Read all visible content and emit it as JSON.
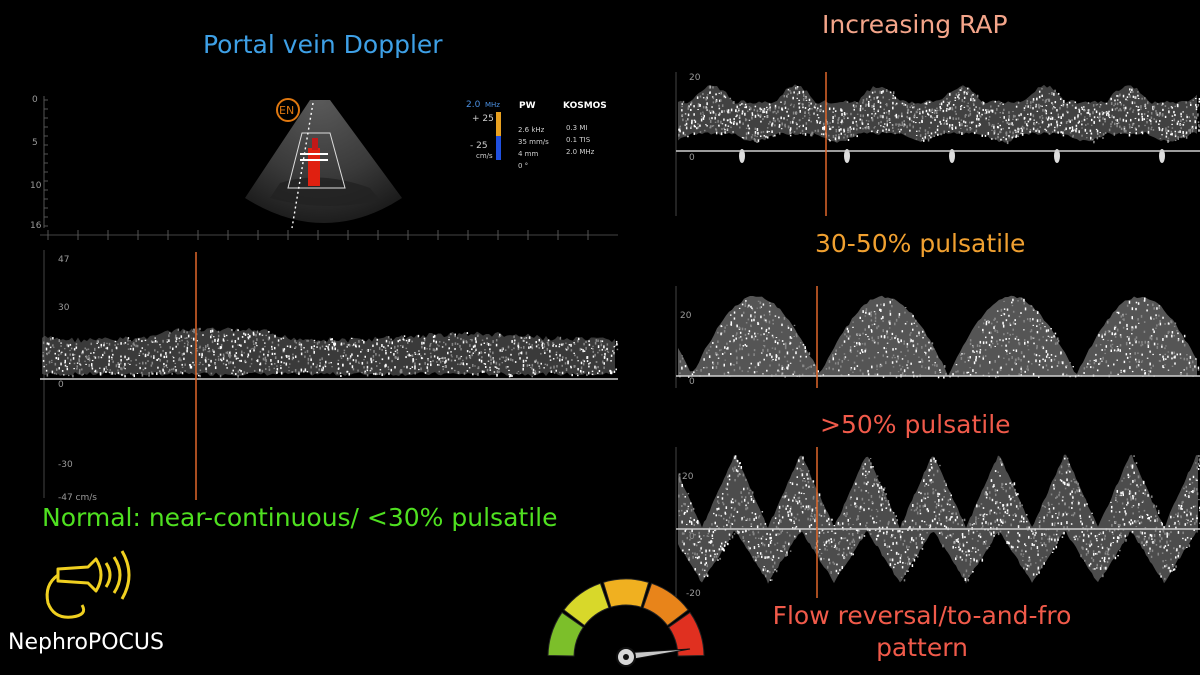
{
  "titles": {
    "portal": "Portal vein Doppler",
    "rap": "Increasing RAP",
    "mild": "30-50% pulsatile",
    "severe": ">50% pulsatile",
    "normal": "Normal: near-continuous/ <30% pulsatile",
    "reversal": "Flow reversal/to-and-fro pattern",
    "brand": "NephroPOCUS"
  },
  "bmode": {
    "depth_ticks": [
      "0",
      "5",
      "10",
      "16"
    ],
    "logo": "EN",
    "color_scale": {
      "freq": "2.0",
      "freq_unit": "MHz",
      "top": "+ 25",
      "bottom": "- 25",
      "unit": "cm/s"
    },
    "pw": {
      "title": "PW",
      "lines": [
        "2.6 kHz",
        "35 mm/s",
        "4 mm",
        "0 °"
      ]
    },
    "kosmos": {
      "title": "KOSMOS",
      "lines": [
        "0.3 MI",
        "0.1 TIS",
        "2.0 MHz"
      ]
    }
  },
  "spectra": {
    "normal": {
      "ticks": [
        "47",
        "30",
        "0",
        "-30",
        "-47 cm/s"
      ]
    },
    "rap": {
      "ticks": [
        "20",
        "0"
      ]
    },
    "mild": {
      "ticks": [
        "20",
        "0"
      ]
    },
    "severe": {
      "ticks": [
        "20",
        "0",
        "-20"
      ]
    }
  },
  "colors": {
    "portal": "#3ea0e6",
    "rap": "#f4a58a",
    "mild": "#f0a030",
    "severe": "#f05a4a",
    "normal": "#4fe020",
    "marker": "#e0672a",
    "gauge": [
      "#7cbf2a",
      "#d8d82a",
      "#f0b020",
      "#e8841a",
      "#e03020"
    ]
  },
  "gauge": {
    "level": 0.95,
    "segments": 5
  }
}
